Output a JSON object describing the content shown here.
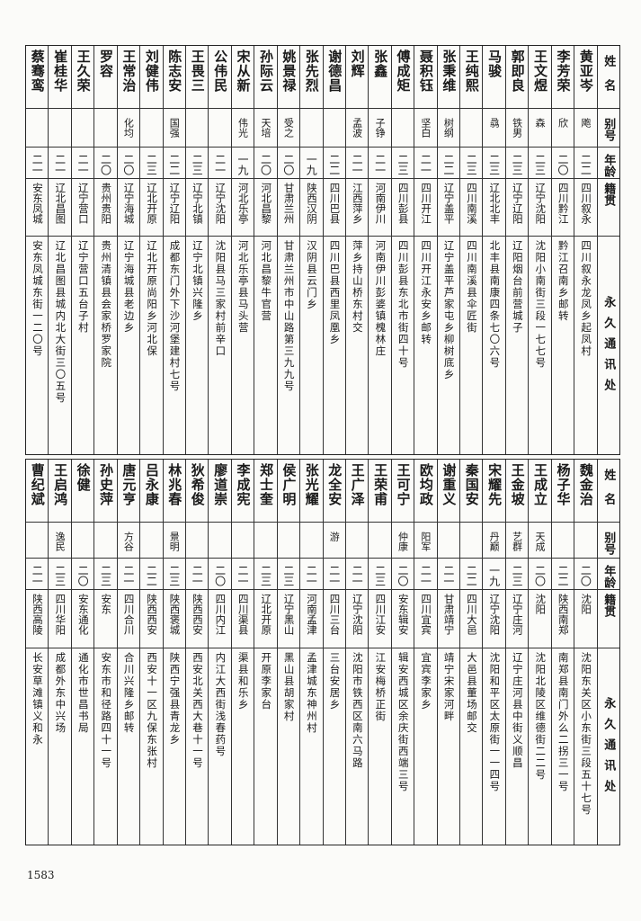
{
  "headers": {
    "name": "姓名",
    "alias": "别号",
    "age": "年龄",
    "origin": "籍贯",
    "address": "永久通讯处"
  },
  "tables": [
    {
      "rows": [
        {
          "name": "黄亚岑",
          "alias": "飑",
          "age": "二二",
          "origin": "四川叙永",
          "address": "四川叙永龙凤乡起凤村"
        },
        {
          "name": "李芳荣",
          "alias": "欣",
          "age": "二〇",
          "origin": "四川黔江",
          "address": "黔江召南乡邮转"
        },
        {
          "name": "王文煜",
          "alias": "森",
          "age": "二三",
          "origin": "辽宁沈阳",
          "address": "沈阳小南街三段一七七号"
        },
        {
          "name": "郭即良",
          "alias": "铁男",
          "age": "二三",
          "origin": "辽宁辽阳",
          "address": "辽阳烟台前营城子"
        },
        {
          "name": "马骏",
          "alias": "骉",
          "age": "二三",
          "origin": "辽北北丰",
          "address": "北丰县南康四条七〇六号"
        },
        {
          "name": "王纯熙",
          "alias": "",
          "age": "二三",
          "origin": "四川南溪",
          "address": "四川南溪县伞匠街"
        },
        {
          "name": "张秉维",
          "alias": "树纲",
          "age": "二二",
          "origin": "辽宁盖平",
          "address": "辽宁盖平芦家屯乡柳树底乡"
        },
        {
          "name": "聂积钰",
          "alias": "坚白",
          "age": "二一",
          "origin": "四川开江",
          "address": "四川开江永安乡邮转"
        },
        {
          "name": "傅成矩",
          "alias": "",
          "age": "二三",
          "origin": "四川彭县",
          "address": "四川彭县东北市街四十号"
        },
        {
          "name": "张鑫",
          "alias": "子铮",
          "age": "二一",
          "origin": "河南伊川",
          "address": "河南伊川彭婆镇槐林庄"
        },
        {
          "name": "刘辉",
          "alias": "孟波",
          "age": "二一",
          "origin": "江西萍乡",
          "address": "萍乡持山桥东村交"
        },
        {
          "name": "谢德昌",
          "alias": "",
          "age": "二二",
          "origin": "四川巴县",
          "address": "四川巴县西里凤凰乡"
        },
        {
          "name": "张先烈",
          "alias": "",
          "age": "一九",
          "origin": "陕西汉阴",
          "address": "汉阴县云门乡"
        },
        {
          "name": "姚景禄",
          "alias": "受之",
          "age": "二〇",
          "origin": "甘肃兰州",
          "address": "甘肃兰州市中山路第三九九号"
        },
        {
          "name": "孙际云",
          "alias": "天培",
          "age": "二〇",
          "origin": "河北昌黎",
          "address": "河北昌黎牛官营"
        },
        {
          "name": "宋从新",
          "alias": "伟光",
          "age": "一九",
          "origin": "河北乐亭",
          "address": "河北乐亭县马头营"
        },
        {
          "name": "公伟民",
          "alias": "",
          "age": "二一",
          "origin": "辽宁沈阳",
          "address": "沈阳县马三家村前辛口"
        },
        {
          "name": "王畏三",
          "alias": "",
          "age": "二三",
          "origin": "辽宁北镇",
          "address": "辽宁北镇兴隆乡"
        },
        {
          "name": "陈志安",
          "alias": "国强",
          "age": "二二",
          "origin": "辽宁辽阳",
          "address": "成都东门外下沙河堡建村七号"
        },
        {
          "name": "刘健伟",
          "alias": "",
          "age": "二三",
          "origin": "辽北开原",
          "address": "辽北开原尚阳乡河北保"
        },
        {
          "name": "王常治",
          "alias": "化均",
          "age": "二〇",
          "origin": "辽宁海城",
          "address": "辽宁海城县老边乡"
        },
        {
          "name": "罗容",
          "alias": "",
          "age": "二〇",
          "origin": "贵州贵阳",
          "address": "贵州清镇县会家桥罗家院"
        },
        {
          "name": "王久荣",
          "alias": "",
          "age": "二一",
          "origin": "辽宁营口",
          "address": "辽宁营口五台子村"
        },
        {
          "name": "崔桂华",
          "alias": "",
          "age": "二一",
          "origin": "辽北昌图",
          "address": "辽北昌图县城内北大街三〇五号"
        },
        {
          "name": "蔡骞鸾",
          "alias": "",
          "age": "二一",
          "origin": "安东凤城",
          "address": "安东凤城东街一二〇号"
        }
      ]
    },
    {
      "rows": [
        {
          "name": "魏金治",
          "alias": "",
          "age": "二〇",
          "origin": "沈阳",
          "address": "沈阳东关区小东街三段五十七号"
        },
        {
          "name": "杨子华",
          "alias": "",
          "age": "二二",
          "origin": "陕西南郑",
          "address": "南郑县南门外么二拐三一号"
        },
        {
          "name": "王成立",
          "alias": "天成",
          "age": "二〇",
          "origin": "沈阳",
          "address": "沈阳北陵区维德街二二号"
        },
        {
          "name": "王金坡",
          "alias": "艺群",
          "age": "二三",
          "origin": "辽宁庄河",
          "address": "辽宁庄河县中街义顺昌"
        },
        {
          "name": "宋耀先",
          "alias": "丹巅",
          "age": "一九",
          "origin": "辽宁沈阳",
          "address": "沈阳和平区太原街一一四号"
        },
        {
          "name": "秦国安",
          "alias": "",
          "age": "二二",
          "origin": "四川大邑",
          "address": "大邑县董场邮交"
        },
        {
          "name": "谢重义",
          "alias": "",
          "age": "二一",
          "origin": "甘肃靖宁",
          "address": "靖宁宋家河畔"
        },
        {
          "name": "欧均政",
          "alias": "阳军",
          "age": "二一",
          "origin": "四川宜宾",
          "address": "宜宾李家乡"
        },
        {
          "name": "王可宁",
          "alias": "仲康",
          "age": "二〇",
          "origin": "安东辑安",
          "address": "辑安西城区余庆街西端三号"
        },
        {
          "name": "王荣甫",
          "alias": "",
          "age": "二三",
          "origin": "四川江安",
          "address": "江安梅桥正街"
        },
        {
          "name": "王广泽",
          "alias": "",
          "age": "二一",
          "origin": "辽宁沈阳",
          "address": "沈阳市铁西区南六马路"
        },
        {
          "name": "龙全安",
          "alias": "游",
          "age": "二一",
          "origin": "四川三台",
          "address": "三台安居乡"
        },
        {
          "name": "张光耀",
          "alias": "",
          "age": "二一",
          "origin": "河南孟津",
          "address": "孟津城东神州村"
        },
        {
          "name": "侯广明",
          "alias": "",
          "age": "二三",
          "origin": "辽宁黑山",
          "address": "黑山县胡家村"
        },
        {
          "name": "郑士奎",
          "alias": "",
          "age": "二三",
          "origin": "辽北开原",
          "address": "开原李家台"
        },
        {
          "name": "李成宪",
          "alias": "",
          "age": "二一",
          "origin": "四川渠县",
          "address": "渠县和乐乡"
        },
        {
          "name": "廖道崇",
          "alias": "",
          "age": "二〇",
          "origin": "四川内江",
          "address": "内江大西街浅春药号"
        },
        {
          "name": "狄希俊",
          "alias": "",
          "age": "二一",
          "origin": "陕西西安",
          "address": "西安北关西大巷十一号"
        },
        {
          "name": "林兆春",
          "alias": "景明",
          "age": "二三",
          "origin": "陕西褒城",
          "address": "陕西宁强县青龙乡"
        },
        {
          "name": "吕永康",
          "alias": "",
          "age": "二二",
          "origin": "陕西西安",
          "address": "西安十一区九保东张村"
        },
        {
          "name": "唐元亨",
          "alias": "方谷",
          "age": "二一",
          "origin": "四川合川",
          "address": "合川兴隆乡邮转"
        },
        {
          "name": "孙史萍",
          "alias": "",
          "age": "二三",
          "origin": "安东",
          "address": "安东市和径路四十一号"
        },
        {
          "name": "徐健",
          "alias": "",
          "age": "二〇",
          "origin": "安东通化",
          "address": "通化市世昌书局"
        },
        {
          "name": "王启鸿",
          "alias": "逸民",
          "age": "二三",
          "origin": "四川华阳",
          "address": "成都外东中兴场"
        },
        {
          "name": "曹纪斌",
          "alias": "",
          "age": "二一",
          "origin": "陕西高陵",
          "address": "长安草滩镇义和永"
        }
      ]
    }
  ],
  "page_number": "1583"
}
